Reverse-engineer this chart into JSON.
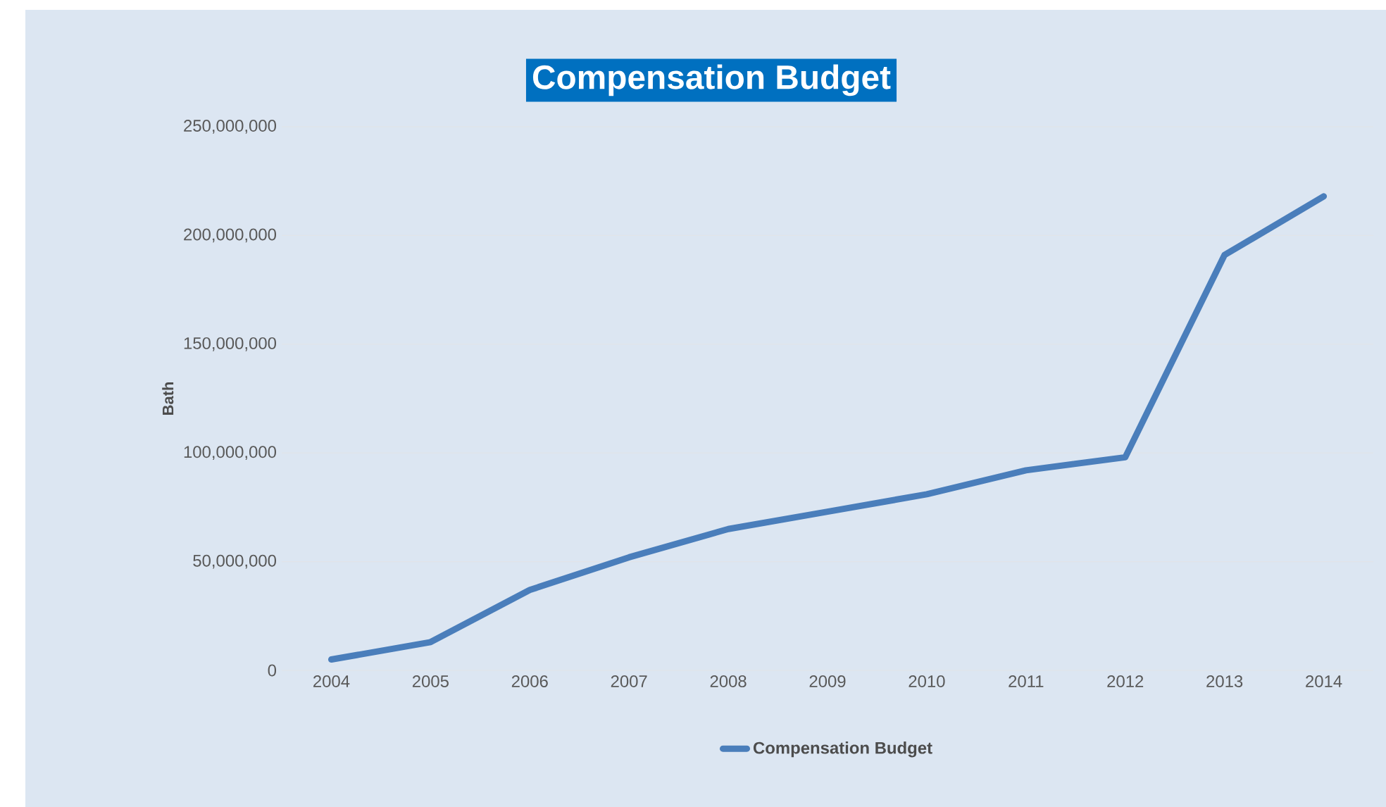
{
  "chart_data": {
    "type": "line",
    "title": "Compensation Budget",
    "ylabel": "Bath",
    "categories": [
      "2004",
      "2005",
      "2006",
      "2007",
      "2008",
      "2009",
      "2010",
      "2011",
      "2012",
      "2013",
      "2014"
    ],
    "series": [
      {
        "name": "Compensation Budget",
        "color": "#4a7ebb",
        "values": [
          5000000,
          13000000,
          37000000,
          52000000,
          65000000,
          73000000,
          81000000,
          92000000,
          98000000,
          191000000,
          218000000
        ]
      }
    ],
    "ylim": [
      0,
      250000000
    ],
    "yticks": [
      {
        "value": 0,
        "label": "0"
      },
      {
        "value": 50000000,
        "label": "50,000,000"
      },
      {
        "value": 100000000,
        "label": "100,000,000"
      },
      {
        "value": 150000000,
        "label": "150,000,000"
      },
      {
        "value": 200000000,
        "label": "200,000,000"
      },
      {
        "value": 250000000,
        "label": "250,000,000"
      }
    ],
    "grid": "y",
    "legend": "bottom",
    "marker": "none",
    "line_style": "solid"
  }
}
